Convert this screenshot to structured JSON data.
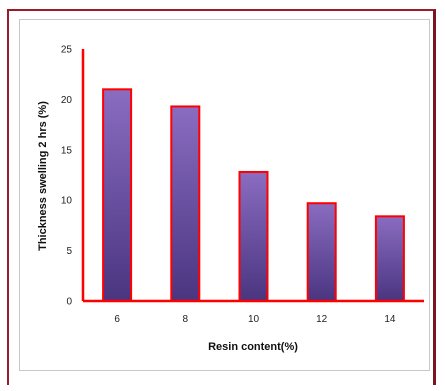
{
  "chart_data": {
    "type": "bar",
    "categories": [
      "6",
      "8",
      "10",
      "12",
      "14"
    ],
    "values": [
      21,
      19.3,
      12.8,
      9.7,
      8.4
    ],
    "title": "",
    "xlabel": "Resin content(%)",
    "ylabel": "Thickness swelling 2 hrs (%)",
    "ylim": [
      0,
      25
    ],
    "yticks": [
      "0",
      "5",
      "10",
      "15",
      "20",
      "25"
    ],
    "grid": false,
    "legend": "none",
    "colors": {
      "bar_fill_top": "#8a6cc0",
      "bar_fill_bottom": "#4a3580",
      "bar_outline": "#ff0000",
      "axis_line": "#ff0000",
      "frame": "#9b1b2a"
    }
  }
}
